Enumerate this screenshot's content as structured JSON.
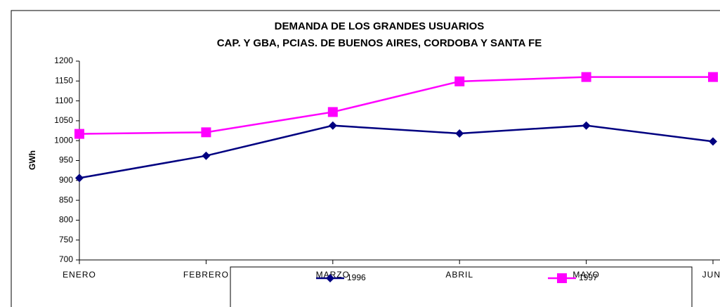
{
  "chart_data": {
    "type": "line",
    "title": "DEMANDA DE LOS GRANDES USUARIOS",
    "subtitle": "CAP. Y GBA, PCIAS. DE BUENOS AIRES, CORDOBA Y SANTA FE",
    "y_label": "GWh",
    "categories": [
      "ENERO",
      "FEBRERO",
      "MARZO",
      "ABRIL",
      "MAYO",
      "JUNI"
    ],
    "series": [
      {
        "name": "1996",
        "color": "#000080",
        "marker": "diamond",
        "values": [
          906,
          962,
          1038,
          1018,
          1038,
          998
        ]
      },
      {
        "name": "1997",
        "color": "#ff00ff",
        "marker": "square",
        "values": [
          1017,
          1021,
          1072,
          1149,
          1160,
          1160
        ]
      }
    ],
    "ylim": [
      700,
      1200
    ],
    "yticks": [
      700,
      750,
      800,
      850,
      900,
      950,
      1000,
      1050,
      1100,
      1150,
      1200
    ],
    "grid": false,
    "legend": "bottom"
  }
}
